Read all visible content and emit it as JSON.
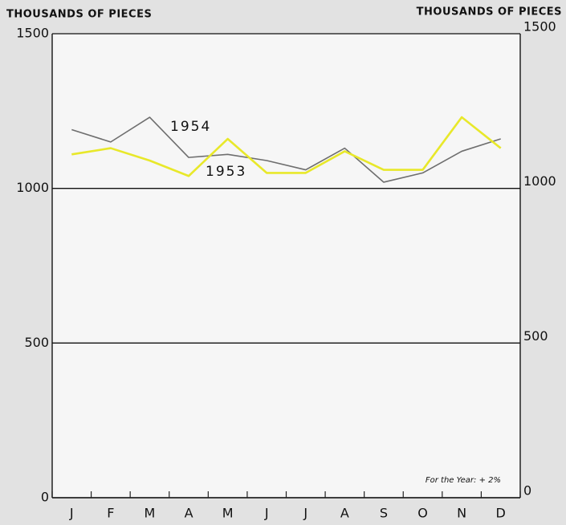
{
  "chart_data": {
    "type": "line",
    "y_label": "THOUSANDS OF PIECES",
    "y2_label": "THOUSANDS OF PIECES",
    "annotation": "For the Year: + 2%",
    "categories": [
      "J",
      "F",
      "M",
      "A",
      "M",
      "J",
      "J",
      "A",
      "S",
      "O",
      "N",
      "D"
    ],
    "series": [
      {
        "name": "1954",
        "color": "#6e6e6e",
        "values": [
          1190,
          1150,
          1230,
          1100,
          1110,
          1090,
          1060,
          1130,
          1020,
          1050,
          1120,
          1160
        ]
      },
      {
        "name": "1953",
        "color": "#e8e82a",
        "values": [
          1110,
          1130,
          1090,
          1040,
          1160,
          1050,
          1050,
          1120,
          1060,
          1060,
          1230,
          1130
        ]
      }
    ],
    "ylim": [
      0,
      1500
    ],
    "yticks": [
      0,
      500,
      1000,
      1500
    ],
    "y2lim": [
      0,
      1500
    ],
    "y2ticks": [
      0,
      500,
      1000,
      1500
    ],
    "grid": true
  }
}
